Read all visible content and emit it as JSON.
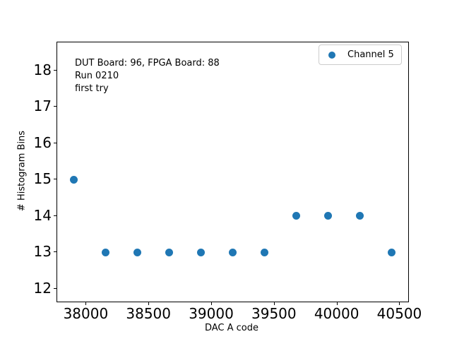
{
  "figure": {
    "background": "#ffffff",
    "annotation_lines": [
      "DUT Board: 96, FPGA Board: 88",
      "Run 0210",
      "first try"
    ],
    "legend": {
      "label": "Channel 5",
      "marker_color": "#1f77b4"
    },
    "xlabel": "DAC A code",
    "ylabel": "# Histogram Bins"
  },
  "chart_data": {
    "type": "scatter",
    "title": "",
    "xlabel": "DAC A code",
    "ylabel": "# Histogram Bins",
    "annotation": "DUT Board: 96, FPGA Board: 88\nRun 0210\nfirst try",
    "legend_position": "upper right",
    "grid": false,
    "marker": "circle",
    "marker_color": "#1f77b4",
    "xlim": [
      37767,
      40565
    ],
    "ylim": [
      11.65,
      18.77
    ],
    "xticks": [
      38000,
      38500,
      39000,
      39500,
      40000,
      40500
    ],
    "yticks": [
      12,
      13,
      14,
      15,
      16,
      17,
      18
    ],
    "series": [
      {
        "name": "Channel 5",
        "color": "#1f77b4",
        "points": [
          [
            37901,
            15
          ],
          [
            38153,
            13
          ],
          [
            38406,
            13
          ],
          [
            38659,
            13
          ],
          [
            38912,
            13
          ],
          [
            39165,
            13
          ],
          [
            39418,
            13
          ],
          [
            39671,
            14
          ],
          [
            39924,
            14
          ],
          [
            40177,
            14
          ],
          [
            40432,
            13
          ]
        ]
      }
    ]
  }
}
